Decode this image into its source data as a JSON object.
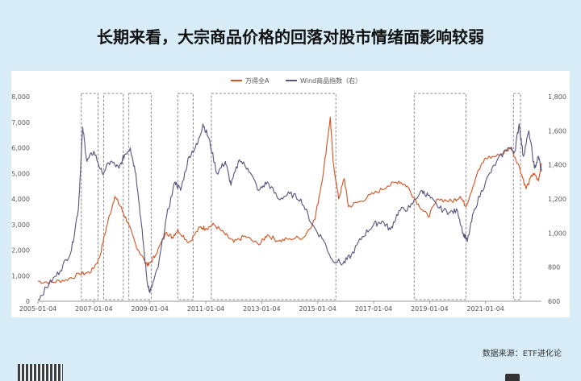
{
  "page": {
    "headline": "长期来看，大宗商品价格的回落对股市情绪面影响较弱",
    "source": "数据来源：ETF进化论"
  },
  "chart_data": {
    "type": "line",
    "title": "",
    "y_left": {
      "ticks": [
        "0",
        "1,000",
        "2,000",
        "3,000",
        "4,000",
        "5,000",
        "6,000",
        "7,000",
        "8,000"
      ],
      "range": [
        0,
        8000
      ]
    },
    "y_right": {
      "ticks": [
        "600",
        "800",
        "1,000",
        "1,200",
        "1,400",
        "1,600",
        "1,800"
      ],
      "range": [
        600,
        1800
      ]
    },
    "x_ticks": [
      "2005-01-04",
      "2007-01-04",
      "2009-01-04",
      "2011-01-04",
      "2013-01-04",
      "2015-01-04",
      "2017-01-04",
      "2019-01-04",
      "2021-01-04"
    ],
    "x_range": [
      2005.0,
      2023.0
    ],
    "legend": {
      "position": "top-center"
    },
    "series": [
      {
        "name": "万得全A",
        "axis": "left",
        "color": "#d4521e",
        "points": [
          [
            2005.0,
            780
          ],
          [
            2005.5,
            740
          ],
          [
            2006.0,
            850
          ],
          [
            2006.5,
            1050
          ],
          [
            2006.9,
            1150
          ],
          [
            2007.2,
            1700
          ],
          [
            2007.45,
            2900
          ],
          [
            2007.75,
            4100
          ],
          [
            2007.95,
            3700
          ],
          [
            2008.2,
            3100
          ],
          [
            2008.5,
            2200
          ],
          [
            2008.8,
            1600
          ],
          [
            2008.95,
            1400
          ],
          [
            2009.2,
            1800
          ],
          [
            2009.6,
            2700
          ],
          [
            2009.8,
            2500
          ],
          [
            2010.0,
            2800
          ],
          [
            2010.4,
            2300
          ],
          [
            2010.8,
            2900
          ],
          [
            2011.0,
            2850
          ],
          [
            2011.3,
            3000
          ],
          [
            2011.7,
            2600
          ],
          [
            2012.0,
            2300
          ],
          [
            2012.4,
            2550
          ],
          [
            2012.9,
            2200
          ],
          [
            2013.2,
            2600
          ],
          [
            2013.6,
            2350
          ],
          [
            2014.0,
            2450
          ],
          [
            2014.5,
            2500
          ],
          [
            2014.9,
            3200
          ],
          [
            2015.2,
            5000
          ],
          [
            2015.45,
            7200
          ],
          [
            2015.55,
            5500
          ],
          [
            2015.75,
            4000
          ],
          [
            2015.95,
            4800
          ],
          [
            2016.1,
            3700
          ],
          [
            2016.5,
            3900
          ],
          [
            2017.0,
            4200
          ],
          [
            2017.5,
            4500
          ],
          [
            2017.9,
            4700
          ],
          [
            2018.2,
            4500
          ],
          [
            2018.6,
            3800
          ],
          [
            2018.95,
            3300
          ],
          [
            2019.3,
            4000
          ],
          [
            2019.8,
            3900
          ],
          [
            2020.1,
            4100
          ],
          [
            2020.3,
            3700
          ],
          [
            2020.7,
            5000
          ],
          [
            2021.0,
            5600
          ],
          [
            2021.5,
            5700
          ],
          [
            2021.9,
            6000
          ],
          [
            2022.2,
            5300
          ],
          [
            2022.45,
            4400
          ],
          [
            2022.7,
            5000
          ],
          [
            2022.9,
            4700
          ],
          [
            2023.0,
            5400
          ]
        ]
      },
      {
        "name": "Wind商品指数（右）",
        "axis": "right",
        "color": "#57527e",
        "points": [
          [
            2005.0,
            610
          ],
          [
            2005.4,
            700
          ],
          [
            2005.8,
            780
          ],
          [
            2006.2,
            900
          ],
          [
            2006.45,
            1150
          ],
          [
            2006.6,
            1620
          ],
          [
            2006.75,
            1420
          ],
          [
            2007.0,
            1480
          ],
          [
            2007.3,
            1350
          ],
          [
            2007.6,
            1420
          ],
          [
            2007.9,
            1380
          ],
          [
            2008.1,
            1460
          ],
          [
            2008.3,
            1500
          ],
          [
            2008.5,
            1350
          ],
          [
            2008.7,
            1050
          ],
          [
            2008.9,
            720
          ],
          [
            2009.0,
            650
          ],
          [
            2009.3,
            800
          ],
          [
            2009.6,
            1100
          ],
          [
            2009.9,
            1300
          ],
          [
            2010.1,
            1250
          ],
          [
            2010.4,
            1450
          ],
          [
            2010.7,
            1520
          ],
          [
            2010.9,
            1640
          ],
          [
            2011.1,
            1560
          ],
          [
            2011.4,
            1350
          ],
          [
            2011.7,
            1420
          ],
          [
            2011.9,
            1280
          ],
          [
            2012.2,
            1430
          ],
          [
            2012.5,
            1380
          ],
          [
            2012.9,
            1250
          ],
          [
            2013.2,
            1300
          ],
          [
            2013.6,
            1200
          ],
          [
            2014.0,
            1230
          ],
          [
            2014.4,
            1200
          ],
          [
            2014.8,
            1050
          ],
          [
            2015.2,
            960
          ],
          [
            2015.5,
            850
          ],
          [
            2015.9,
            820
          ],
          [
            2016.2,
            870
          ],
          [
            2016.6,
            980
          ],
          [
            2017.0,
            1050
          ],
          [
            2017.3,
            1070
          ],
          [
            2017.6,
            1020
          ],
          [
            2017.9,
            1130
          ],
          [
            2018.3,
            1150
          ],
          [
            2018.7,
            1250
          ],
          [
            2018.95,
            1220
          ],
          [
            2019.3,
            1150
          ],
          [
            2019.7,
            1120
          ],
          [
            2020.0,
            1130
          ],
          [
            2020.2,
            1000
          ],
          [
            2020.35,
            950
          ],
          [
            2020.6,
            1140
          ],
          [
            2021.0,
            1300
          ],
          [
            2021.4,
            1420
          ],
          [
            2021.8,
            1500
          ],
          [
            2022.05,
            1480
          ],
          [
            2022.2,
            1640
          ],
          [
            2022.35,
            1450
          ],
          [
            2022.55,
            1600
          ],
          [
            2022.75,
            1380
          ],
          [
            2022.9,
            1450
          ],
          [
            2023.0,
            1360
          ]
        ]
      }
    ],
    "shaded_windows": [
      [
        2006.55,
        2007.15
      ],
      [
        2007.35,
        2008.05
      ],
      [
        2008.25,
        2009.05
      ],
      [
        2010.0,
        2010.55
      ],
      [
        2011.2,
        2015.65
      ],
      [
        2018.45,
        2020.3
      ],
      [
        2022.0,
        2022.25
      ]
    ]
  }
}
